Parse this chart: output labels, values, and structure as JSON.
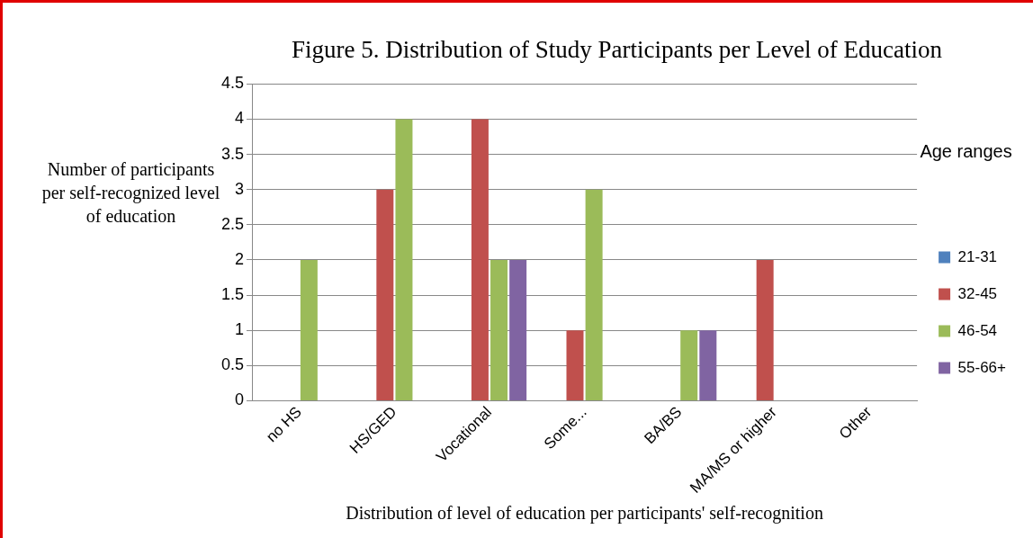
{
  "chart_data": {
    "type": "bar",
    "title": "Figure 5. Distribution of Study Participants per Level of Education",
    "xlabel": "Distribution of level of education per participants' self-recognition",
    "ylabel": "Number of participants per self-recognized level of education",
    "legend_title": "Age ranges",
    "categories": [
      "no HS",
      "HS/GED",
      "Vocational",
      "Some...",
      "BA/BS",
      "MA/MS or higher",
      "Other"
    ],
    "series": [
      {
        "name": "21-31",
        "color": "#4f81bd",
        "values": [
          0,
          0,
          0,
          0,
          0,
          0,
          0
        ]
      },
      {
        "name": "32-45",
        "color": "#c0504d",
        "values": [
          0,
          3,
          4,
          1,
          0,
          2,
          0
        ]
      },
      {
        "name": "46-54",
        "color": "#9bbb59",
        "values": [
          2,
          4,
          2,
          3,
          1,
          0,
          0
        ]
      },
      {
        "name": "55-66+",
        "color": "#8064a2",
        "values": [
          0,
          0,
          2,
          0,
          1,
          0,
          0
        ]
      }
    ],
    "ylim": [
      0,
      4.5
    ],
    "yticks": [
      0,
      0.5,
      1,
      1.5,
      2,
      2.5,
      3,
      3.5,
      4,
      4.5
    ],
    "grid": "y",
    "legend": "right"
  }
}
